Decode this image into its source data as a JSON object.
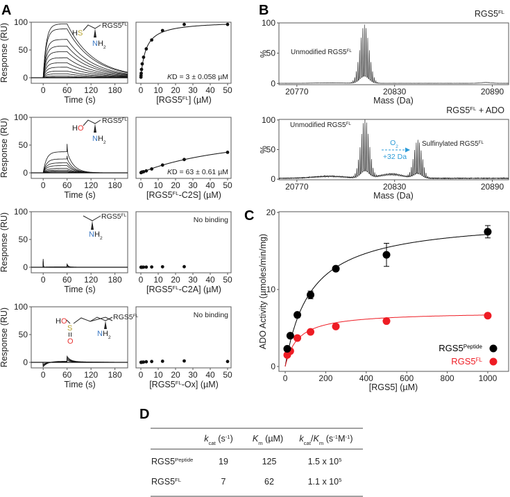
{
  "panel_labels": {
    "a": "A",
    "b": "B",
    "c": "C",
    "d": "D"
  },
  "common": {
    "rgs5": "RGS5",
    "fl": "FL",
    "peptide": "Peptide",
    "time_label": "Time (s)",
    "response_label": "Response (RU)",
    "no_binding": "No binding",
    "um_suffix": "] (µM)",
    "bracket_open": "[",
    "kd_k": "K",
    "kd_d": "D"
  },
  "structures": [
    {
      "h": "H",
      "x": "S",
      "x_color": "#b5a02a",
      "n": "N",
      "n_color": "#3b78c4",
      "h2": "H",
      "two": "2"
    },
    {
      "h": "H",
      "x": "O",
      "x_color": "#e8312f",
      "n": "N",
      "n_color": "#3b78c4",
      "h2": "H",
      "two": "2"
    },
    {
      "n": "N",
      "n_color": "#3b78c4",
      "h2": "H",
      "two": "2"
    },
    {
      "h": "H",
      "o1": "O",
      "s": "S",
      "o2": "O",
      "o_color": "#e8312f",
      "s_color": "#b5a02a",
      "n": "N",
      "n_color": "#3b78c4",
      "h2": "H",
      "two": "2"
    }
  ],
  "chart_data": [
    {
      "id": "spr-wt-sensorgram",
      "panel": "A",
      "type": "line",
      "xlabel": "Time (s)",
      "ylabel": "Response (RU)",
      "xlim": [
        -30,
        212
      ],
      "ylim": [
        -10,
        100
      ],
      "xticks": [
        "0",
        "60",
        "120",
        "180"
      ],
      "yticks": [
        "0",
        "50",
        "100"
      ],
      "association_end_s": 60,
      "ka": 0.13,
      "kd": 0.015,
      "plateaus_RU": [
        97,
        88,
        69,
        57,
        47,
        36,
        27,
        19,
        12,
        7,
        3,
        1
      ],
      "spikes": []
    },
    {
      "id": "spr-wt-binding",
      "panel": "A",
      "type": "scatter",
      "xlabel_inner": "",
      "xlim": [
        -2.8,
        52
      ],
      "ylim": [
        -10,
        100
      ],
      "xticks": [
        "0",
        "10",
        "20",
        "30",
        "40",
        "50"
      ],
      "x": [
        0.05,
        0.1,
        0.2,
        0.39,
        0.78,
        1.56,
        3.125,
        6.25,
        12.5,
        25,
        50
      ],
      "y": [
        1,
        4,
        8,
        15,
        25,
        37,
        52,
        68,
        85,
        96,
        96
      ],
      "fit": {
        "model": "one-site",
        "Rmax": 102,
        "Kd": 3
      },
      "annotation": " = 3 ± 0.058 µM",
      "suffix": ""
    },
    {
      "id": "spr-c2s-sensorgram",
      "panel": "A",
      "type": "line",
      "xlim": [
        -30,
        212
      ],
      "ylim": [
        -10,
        100
      ],
      "xticks": [
        "0",
        "60",
        "120",
        "180"
      ],
      "yticks": [
        "0",
        "50",
        "100"
      ],
      "association_end_s": 60,
      "ka": 0.12,
      "kd": 0.06,
      "plateaus_RU": [
        38,
        25,
        18,
        13,
        8,
        5,
        3,
        1.5
      ],
      "spikes": [
        {
          "t": 60,
          "amp": 14,
          "decay": 0.8
        }
      ]
    },
    {
      "id": "spr-c2s-binding",
      "panel": "A",
      "type": "scatter",
      "xlim": [
        -2.8,
        52
      ],
      "ylim": [
        -10,
        100
      ],
      "xticks": [
        "0",
        "10",
        "20",
        "30",
        "40",
        "50"
      ],
      "x": [
        0.1,
        0.2,
        0.39,
        0.78,
        1.56,
        3.125,
        6.25,
        12.5,
        25,
        50
      ],
      "y": [
        0.3,
        0.6,
        1,
        1.5,
        2,
        3.5,
        7,
        14,
        24,
        37
      ],
      "fit": {
        "model": "one-site",
        "Rmax": 84,
        "Kd": 63
      },
      "annotation": " = 63 ± 0.61 µM",
      "suffix": "-C2S"
    },
    {
      "id": "spr-c2a-sensorgram",
      "panel": "A",
      "type": "line",
      "xlim": [
        -30,
        212
      ],
      "ylim": [
        -10,
        100
      ],
      "xticks": [
        "0",
        "60",
        "120",
        "180"
      ],
      "yticks": [
        "0",
        "50",
        "100"
      ],
      "association_end_s": 60,
      "ka": 0.1,
      "kd": 0.05,
      "plateaus_RU": [
        0.6,
        0.4,
        0.2
      ],
      "spikes": [
        {
          "t": 0,
          "amp": 15,
          "decay": 0.6
        },
        {
          "t": 60,
          "amp": 5,
          "decay": 3
        }
      ]
    },
    {
      "id": "spr-c2a-binding",
      "panel": "A",
      "type": "scatter",
      "xlim": [
        -2.8,
        52
      ],
      "ylim": [
        -10,
        100
      ],
      "xticks": [
        "0",
        "10",
        "20",
        "30",
        "40",
        "50"
      ],
      "x": [
        0.1,
        0.2,
        0.39,
        0.78,
        1.56,
        3.125,
        6.25,
        12.5,
        25
      ],
      "y": [
        0,
        0,
        0,
        0,
        0.2,
        0.3,
        0.5,
        0.8,
        1
      ],
      "annotation_text": "No binding",
      "suffix": "-C2A"
    },
    {
      "id": "spr-ox-sensorgram",
      "panel": "A",
      "type": "line",
      "xlim": [
        -30,
        212
      ],
      "ylim": [
        -10,
        100
      ],
      "xticks": [
        "0",
        "60",
        "120",
        "180"
      ],
      "yticks": [
        "0",
        "50",
        "100"
      ],
      "association_end_s": 60,
      "ka": 0.1,
      "kd": 0.02,
      "plateaus_RU": [
        2,
        1.5,
        1,
        0.5
      ],
      "spikes": [
        {
          "t": 0,
          "amp": -8,
          "decay": 12
        },
        {
          "t": 60,
          "amp": 9,
          "decay": 8
        }
      ]
    },
    {
      "id": "spr-ox-binding",
      "panel": "A",
      "type": "scatter",
      "xlim": [
        -2.8,
        52
      ],
      "ylim": [
        -10,
        100
      ],
      "xticks": [
        "0",
        "10",
        "20",
        "30",
        "40",
        "50"
      ],
      "x": [
        0.1,
        0.2,
        0.39,
        0.78,
        1.56,
        3.125,
        6.25,
        12.5,
        25,
        50
      ],
      "y": [
        0,
        0,
        0.2,
        0.3,
        0.5,
        1,
        1.5,
        2,
        2.5,
        1.5
      ],
      "annotation_text": "No binding",
      "suffix": "-Ox"
    },
    {
      "id": "ms-rgs5fl",
      "panel": "B",
      "type": "line",
      "title_suffix": "",
      "xlabel": "Mass (Da)",
      "ylabel": "%",
      "xlim": [
        20759,
        20900
      ],
      "ylim": [
        -2,
        100
      ],
      "xticks": [
        20770,
        20830,
        20890
      ],
      "yticks": [
        0,
        50,
        100
      ],
      "isotope_envelopes": [
        {
          "center": 20811.5,
          "height": 97,
          "sigma": 2.8
        }
      ],
      "background": [
        {
          "center": 20886,
          "height": 1.5,
          "sigma": 3
        },
        {
          "center": 20790,
          "height": 0.8,
          "sigma": 8
        }
      ],
      "noise": 0.4,
      "annotations": [
        {
          "text": "Unmodified ",
          "sup": "FL"
        }
      ]
    },
    {
      "id": "ms-rgs5fl-ado",
      "panel": "B",
      "type": "line",
      "title_suffix": " + ADO",
      "xlabel": "Mass (Da)",
      "ylabel": "%",
      "xlim": [
        20759,
        20900
      ],
      "ylim": [
        -1,
        101
      ],
      "xticks": [
        20770,
        20830,
        20890
      ],
      "yticks": [
        0,
        50,
        100
      ],
      "isotope_envelopes": [
        {
          "center": 20811.8,
          "height": 100,
          "sigma": 2.6
        },
        {
          "center": 20844.3,
          "height": 65,
          "sigma": 2.5
        }
      ],
      "background": [
        {
          "center": 20828,
          "height": 8,
          "sigma": 7
        },
        {
          "center": 20790,
          "height": 4,
          "sigma": 10
        }
      ],
      "noise": 2,
      "annotations": [
        {
          "text": "Unmodified ",
          "sup": "FL"
        },
        {
          "text": "Sulfinylated ",
          "sup": "FL"
        }
      ],
      "arrow": {
        "top": "O",
        "top_sub": "2",
        "bottom": "+32 Da",
        "color": "#2a9bd8"
      }
    },
    {
      "id": "ado-kinetics",
      "panel": "C",
      "type": "scatter",
      "xlabel": "[RGS5] (µM)",
      "ylabel": "ADO Activity (µmoles/min/mg)",
      "xlim": [
        -31,
        1103
      ],
      "ylim": [
        -0.63,
        20.1
      ],
      "xticks": [
        0,
        200,
        400,
        600,
        800,
        1000
      ],
      "yticks": [
        0,
        10,
        20
      ],
      "legend_position": "bottom-right",
      "series": [
        {
          "name": "RGS5",
          "sup": "Peptide",
          "color": "#000000",
          "x": [
            10,
            25,
            60,
            125,
            250,
            500,
            1000
          ],
          "y": [
            2.3,
            4.0,
            6.7,
            9.3,
            12.7,
            14.5,
            17.5
          ],
          "err": [
            0,
            0,
            0,
            0.5,
            0.2,
            1.5,
            0.8
          ],
          "fit": {
            "Vmax": 19.3,
            "Km": 125
          }
        },
        {
          "name": "RGS5",
          "sup": "FL",
          "color": "#ee1c24",
          "x": [
            10,
            25,
            60,
            125,
            250,
            500,
            1000
          ],
          "y": [
            1.5,
            2.0,
            3.7,
            4.5,
            5.2,
            5.9,
            6.6
          ],
          "err": [
            0,
            0,
            0,
            0,
            0,
            0,
            0
          ],
          "fit": {
            "Vmax": 7.1,
            "Km": 62
          }
        }
      ]
    }
  ],
  "table": {
    "headers": [
      {
        "main": "k",
        "sub": "cat",
        "rest": " (s",
        "sup": "-1",
        "end": ")"
      },
      {
        "main": "K",
        "sub": "m",
        "rest": " (µM)"
      },
      {
        "main": "k",
        "sub": "cat",
        "slash": "/",
        "main2": "K",
        "sub2": "m",
        "rest": " (s",
        "sup": "-1",
        "mid": "M",
        "sup2": "-1",
        "end": ")"
      }
    ],
    "rows": [
      {
        "name": "RGS5",
        "sup": "Peptide",
        "kcat": "19",
        "km": "125",
        "eff": "1.5 x 10",
        "eff_exp": "5"
      },
      {
        "name": "RGS5",
        "sup": "FL",
        "kcat": "7",
        "km": "62",
        "eff": "1.1 x 10",
        "eff_exp": "5"
      }
    ]
  }
}
